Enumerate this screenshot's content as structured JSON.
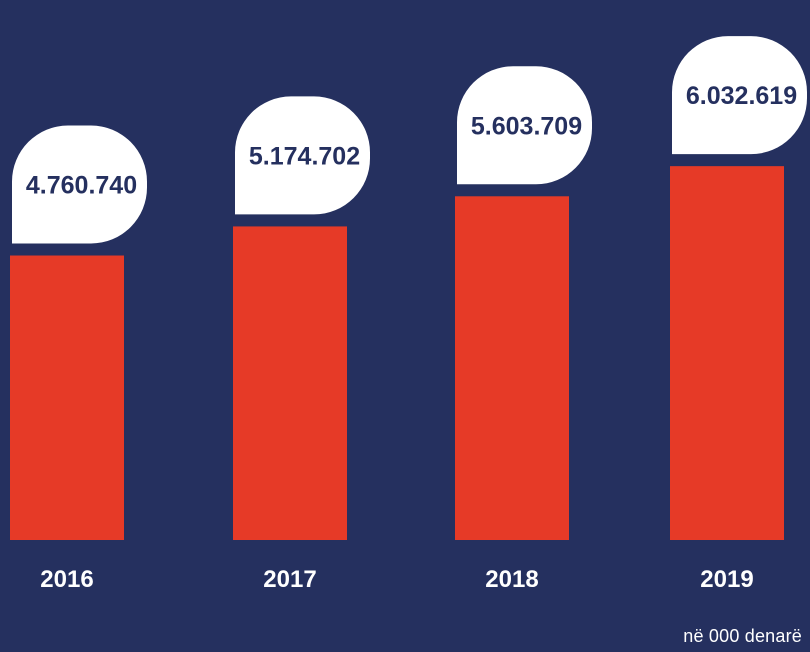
{
  "chart_data": {
    "type": "bar",
    "categories": [
      "2016",
      "2017",
      "2018",
      "2019"
    ],
    "values": [
      4760740,
      5174702,
      5603709,
      6032619
    ],
    "value_labels": [
      "4.760.740",
      "5.174.702",
      "5.603.709",
      "6.032.619"
    ],
    "unit_note": "në 000 denarë",
    "legend": "none",
    "grid": false
  },
  "colors": {
    "background": "#25305f",
    "bar": "#e63a27",
    "bubble": "#ffffff",
    "value_text": "#25305f",
    "axis_text": "#ffffff"
  }
}
